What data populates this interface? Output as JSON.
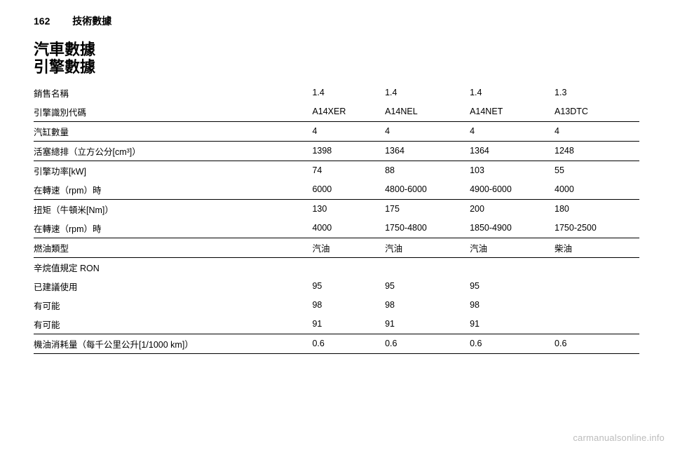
{
  "page_number": "162",
  "chapter": "技術數據",
  "main_title_line1": "汽車數據",
  "main_title_line2": "引擎數據",
  "labels": {
    "sales_name": "銷售名稱",
    "engine_code": "引擎識別代碼",
    "cylinders": "汽缸數量",
    "displacement": "活塞總排（立方公分[cm³]）",
    "power": "引擎功率[kW]",
    "at_rpm_1": "在轉速（rpm）時",
    "torque": "扭矩（牛頓米[Nm]）",
    "at_rpm_2": "在轉速（rpm）時",
    "fuel_type": "燃油類型",
    "octane_title": "辛烷值規定 RON",
    "recommended": "已建議使用",
    "possible1": "有可能",
    "possible2": "有可能",
    "oil_consumption": "機油消耗量（每千公里公升[1/1000 km]）"
  },
  "columns": {
    "sales_name": [
      "1.4",
      "1.4",
      "1.4",
      "1.3"
    ],
    "engine_code": [
      "A14XER",
      "A14NEL",
      "A14NET",
      "A13DTC"
    ],
    "cylinders": [
      "4",
      "4",
      "4",
      "4"
    ],
    "displacement": [
      "1398",
      "1364",
      "1364",
      "1248"
    ],
    "power": [
      "74",
      "88",
      "103",
      "55"
    ],
    "at_rpm_1": [
      "6000",
      "4800-6000",
      "4900-6000",
      "4000"
    ],
    "torque": [
      "130",
      "175",
      "200",
      "180"
    ],
    "at_rpm_2": [
      "4000",
      "1750-4800",
      "1850-4900",
      "1750-2500"
    ],
    "fuel_type": [
      "汽油",
      "汽油",
      "汽油",
      "柴油"
    ],
    "recommended": [
      "95",
      "95",
      "95",
      ""
    ],
    "possible1": [
      "98",
      "98",
      "98",
      ""
    ],
    "possible2": [
      "91",
      "91",
      "91",
      ""
    ],
    "oil": [
      "0.6",
      "0.6",
      "0.6",
      "0.6"
    ]
  },
  "watermark": "carmanualsonline.info"
}
